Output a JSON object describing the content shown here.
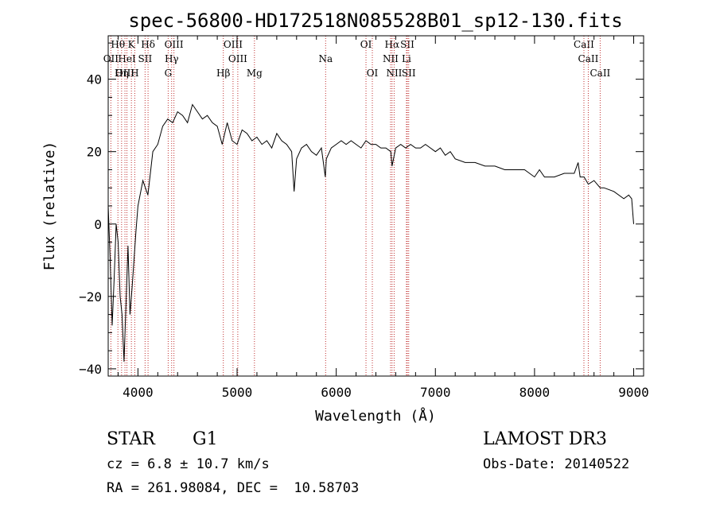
{
  "chart_data": {
    "type": "line",
    "title": "spec-56800-HD172518N085528B01_sp12-130.fits",
    "xlabel": "Wavelength (Å)",
    "ylabel": "Flux (relative)",
    "xlim": [
      3700,
      9100
    ],
    "ylim": [
      -42,
      52
    ],
    "xticks": [
      4000,
      5000,
      6000,
      7000,
      8000,
      9000
    ],
    "yticks": [
      -40,
      -20,
      0,
      20,
      40
    ],
    "xtick_labels": [
      "4000",
      "5000",
      "6000",
      "7000",
      "8000",
      "9000"
    ],
    "ytick_labels": [
      "−40",
      "−20",
      "0",
      "20",
      "40"
    ],
    "grid": false,
    "series": [
      {
        "name": "spectrum",
        "x": [
          3700,
          3720,
          3740,
          3760,
          3780,
          3800,
          3820,
          3840,
          3860,
          3880,
          3900,
          3920,
          3940,
          3960,
          3980,
          4000,
          4050,
          4100,
          4150,
          4200,
          4250,
          4300,
          4350,
          4400,
          4450,
          4500,
          4550,
          4600,
          4650,
          4700,
          4750,
          4800,
          4850,
          4900,
          4950,
          5000,
          5050,
          5100,
          5150,
          5200,
          5250,
          5300,
          5350,
          5400,
          5450,
          5500,
          5550,
          5575,
          5600,
          5650,
          5700,
          5750,
          5800,
          5850,
          5890,
          5900,
          5950,
          6000,
          6050,
          6100,
          6150,
          6200,
          6250,
          6300,
          6350,
          6400,
          6450,
          6500,
          6550,
          6563,
          6600,
          6650,
          6700,
          6750,
          6800,
          6850,
          6900,
          6950,
          7000,
          7050,
          7100,
          7150,
          7200,
          7300,
          7400,
          7500,
          7600,
          7700,
          7800,
          7900,
          8000,
          8050,
          8100,
          8200,
          8300,
          8400,
          8440,
          8460,
          8500,
          8542,
          8600,
          8662,
          8700,
          8800,
          8900,
          8950,
          8980,
          9000
        ],
        "y": [
          5,
          -10,
          -28,
          -15,
          0,
          -5,
          -20,
          -25,
          -38,
          -22,
          -6,
          -25,
          -18,
          -10,
          -2,
          5,
          12,
          8,
          20,
          22,
          27,
          29,
          28,
          31,
          30,
          28,
          33,
          31,
          29,
          30,
          28,
          27,
          22,
          28,
          23,
          22,
          26,
          25,
          23,
          24,
          22,
          23,
          21,
          25,
          23,
          22,
          20,
          9,
          18,
          21,
          22,
          20,
          19,
          21,
          13,
          18,
          21,
          22,
          23,
          22,
          23,
          22,
          21,
          23,
          22,
          22,
          21,
          21,
          20,
          16,
          21,
          22,
          21,
          22,
          21,
          21,
          22,
          21,
          20,
          21,
          19,
          20,
          18,
          17,
          17,
          16,
          16,
          15,
          15,
          15,
          13,
          15,
          13,
          13,
          14,
          14,
          17,
          13,
          13,
          11,
          12,
          10,
          10,
          9,
          7,
          8,
          7,
          0
        ]
      }
    ],
    "lines": [
      "Hθ",
      "K",
      "Hδ",
      "OIII",
      "OIII",
      "OI",
      "Hα",
      "SII",
      "CaII",
      "OII",
      "HeI",
      "SII",
      "Hγ",
      "OIII",
      "Na",
      "NII",
      "Li",
      "CaII",
      "OIII",
      "Hη",
      "H",
      "G",
      "Hβ",
      "Mg",
      "OI",
      "NII",
      "SII",
      "CaII"
    ],
    "line_waves": [
      3798,
      3934,
      4102,
      4363,
      4959,
      6300,
      6563,
      6717,
      8498,
      3727,
      3889,
      4072,
      4340,
      5007,
      5893,
      6548,
      6708,
      8542,
      3869,
      3835,
      3968,
      4305,
      4861,
      5175,
      6364,
      6584,
      6731,
      8662
    ],
    "line_rows": [
      0,
      0,
      0,
      0,
      0,
      0,
      0,
      0,
      0,
      1,
      1,
      1,
      1,
      1,
      1,
      1,
      1,
      1,
      2,
      2,
      2,
      2,
      2,
      2,
      2,
      2,
      2,
      2
    ],
    "line_label_dx": [
      0,
      0,
      0,
      0,
      0,
      0,
      0,
      0,
      0,
      0,
      0,
      0,
      0,
      0,
      0,
      0,
      0,
      0,
      0,
      0,
      0,
      0,
      0,
      0,
      0,
      0,
      0,
      0
    ]
  },
  "info": {
    "object_type": "STAR",
    "subclass": "G1",
    "survey": "LAMOST DR3",
    "redshift": "cz = 6.8 ± 10.7 km/s",
    "obs_date": "Obs-Date: 20140522",
    "coords": "RA = 261.98084, DEC =  10.58703"
  }
}
